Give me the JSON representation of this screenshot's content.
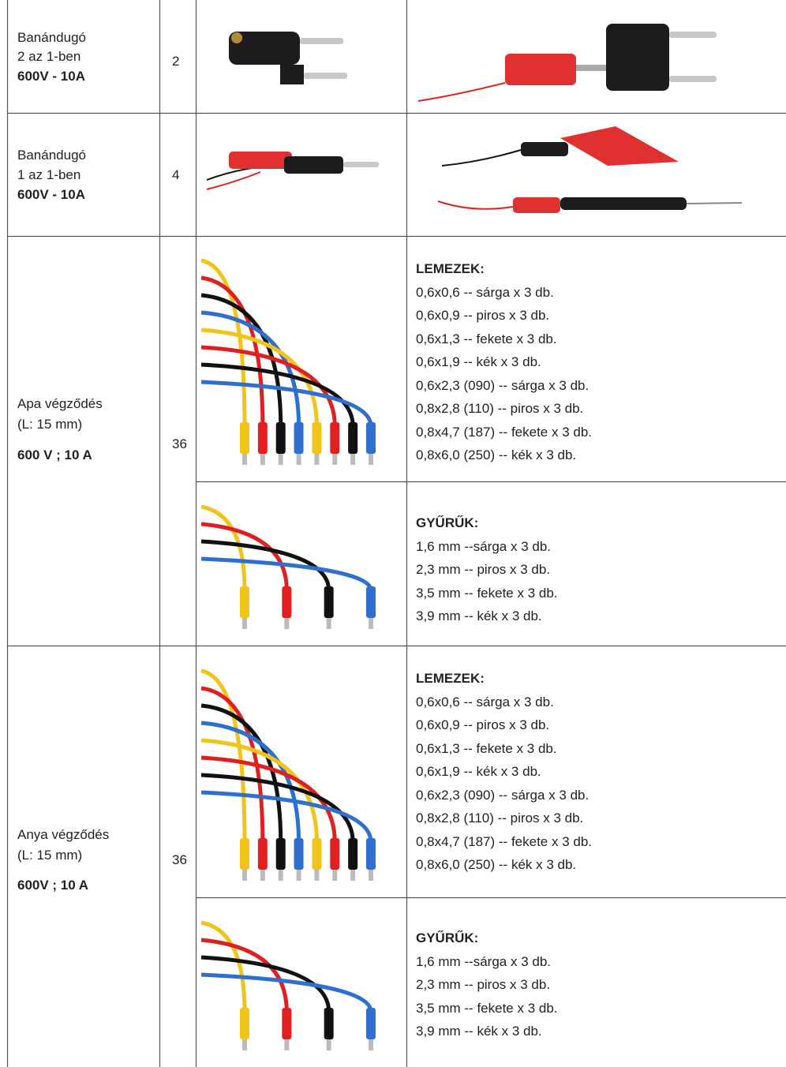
{
  "table": {
    "rows": [
      {
        "name": [
          "Banándugó",
          "2 az 1-ben"
        ],
        "rating": "600V - 10A",
        "qty": 2
      },
      {
        "name": [
          "Banándugó",
          "1 az 1-ben"
        ],
        "rating": "600V - 10A",
        "qty": 4
      },
      {
        "name": [
          "Apa végződés",
          "(L: 15 mm)"
        ],
        "rating": "600 V ; 10 A",
        "qty": 36,
        "details": [
          {
            "heading": "LEMEZEK:",
            "items": [
              "0,6x0,6 -- sárga x 3 db.",
              "0,6x0,9 -- piros x 3 db.",
              "0,6x1,3 -- fekete x 3 db.",
              "0,6x1,9 -- kék x 3 db.",
              "0,6x2,3 (090) -- sárga x 3 db.",
              "0,8x2,8 (110) -- piros x 3 db.",
              "0,8x4,7 (187) -- fekete x 3 db.",
              "0,8x6,0 (250) -- kék x 3 db."
            ]
          },
          {
            "heading": "GYŰRŰK:",
            "items": [
              "1,6 mm --sárga x 3 db.",
              "2,3 mm -- piros x 3 db.",
              "3,5 mm -- fekete x 3 db.",
              "3,9 mm -- kék x 3 db."
            ]
          }
        ]
      },
      {
        "name": [
          "Anya végződés",
          "(L: 15 mm)"
        ],
        "rating": "600V ; 10 A",
        "qty": 36,
        "details": [
          {
            "heading": "LEMEZEK:",
            "items": [
              "0,6x0,6 -- sárga x 3 db.",
              "0,6x0,9 -- piros x 3 db.",
              "0,6x1,3 -- fekete x 3 db.",
              "0,6x1,9 -- kék x 3 db.",
              "0,6x2,3 (090) -- sárga x 3 db.",
              "0,8x2,8 (110) -- piros x 3 db.",
              "0,8x4,7 (187) -- fekete x 3 db.",
              "0,8x6,0 (250) -- kék x 3 db."
            ]
          },
          {
            "heading": "GYŰRŰK:",
            "items": [
              "1,6 mm --sárga x 3 db.",
              "2,3 mm -- piros x 3 db.",
              "3,5 mm -- fekete x 3 db.",
              "3,9 mm -- kék x 3 db."
            ]
          }
        ]
      }
    ]
  }
}
